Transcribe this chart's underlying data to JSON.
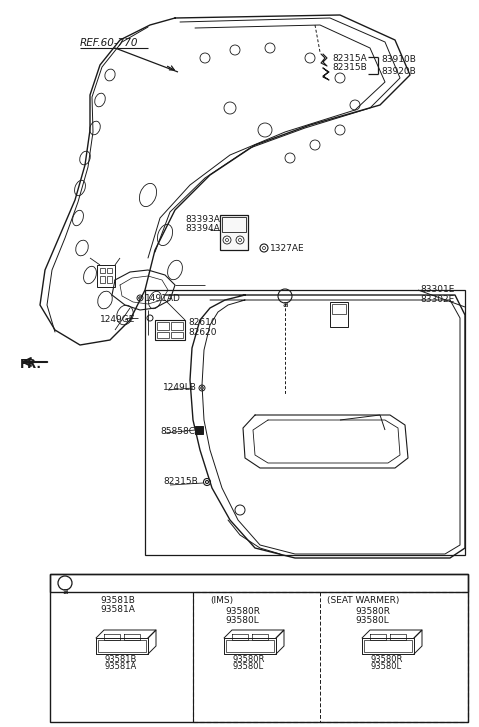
{
  "bg_color": "#ffffff",
  "lc": "#1a1a1a",
  "labels": {
    "ref": "REF.60-770",
    "fr": "FR.",
    "82315A": "82315A",
    "82315B_t": "82315B",
    "83910B": "83910B",
    "83920B": "83920B",
    "83393A": "83393A",
    "83394A": "83394A",
    "1327AE": "1327AE",
    "1491AD": "1491AD",
    "82610": "82610",
    "82620": "82620",
    "1249GE": "1249GE",
    "83301E": "83301E",
    "83302E": "83302E",
    "1249LB": "1249LB",
    "85858C": "85858C",
    "82315B_b": "82315B",
    "93581B": "93581B",
    "93581A": "93581A",
    "IMS": "(IMS)",
    "93580R": "93580R",
    "93580L": "93580L",
    "SW": "(SEAT WARMER)",
    "a": "a"
  }
}
